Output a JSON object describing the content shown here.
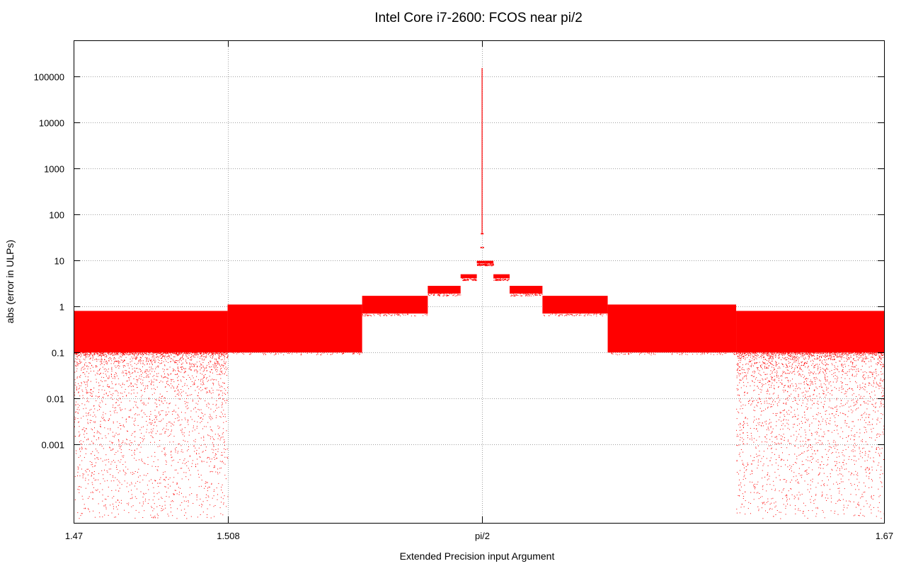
{
  "chart_data": {
    "type": "scatter",
    "title": "Intel Core i7-2600: FCOS near pi/2",
    "xlabel": "Extended Precision input Argument",
    "ylabel": "abs (error in ULPs)",
    "xlim": [
      1.47,
      1.67
    ],
    "x_tick_labels": [
      {
        "value": 1.47,
        "label": "1.47"
      },
      {
        "value": 1.508,
        "label": "1.508"
      },
      {
        "value": 1.5707963,
        "label": "pi/2"
      },
      {
        "value": 1.67,
        "label": "1.67"
      }
    ],
    "y_scale": "log",
    "ylim": [
      2e-05,
      600000
    ],
    "y_tick_labels": [
      {
        "value": 0.001,
        "label": "0.001"
      },
      {
        "value": 0.01,
        "label": "0.01"
      },
      {
        "value": 0.1,
        "label": "0.1"
      },
      {
        "value": 1,
        "label": "1"
      },
      {
        "value": 10,
        "label": "10"
      },
      {
        "value": 100,
        "label": "100"
      },
      {
        "value": 1000,
        "label": "1000"
      },
      {
        "value": 10000,
        "label": "10000"
      },
      {
        "value": 100000,
        "label": "100000"
      }
    ],
    "grid": true,
    "color": "#ff0000",
    "bands": [
      {
        "x0": 1.47,
        "x1": 1.508,
        "ymin": 0.1,
        "ymax": 0.8,
        "sparse_tail": true
      },
      {
        "x0": 1.508,
        "x1": 1.5412,
        "ymin": 0.1,
        "ymax": 1.1
      },
      {
        "x0": 1.5412,
        "x1": 1.5574,
        "ymin": 0.7,
        "ymax": 1.7
      },
      {
        "x0": 1.5574,
        "x1": 1.5655,
        "ymin": 1.9,
        "ymax": 2.8
      },
      {
        "x0": 1.5655,
        "x1": 1.5695,
        "ymin": 4.1,
        "ymax": 5.0
      },
      {
        "x0": 1.5695,
        "x1": 1.5716,
        "ymin": 8.6,
        "ymax": 9.8
      },
      {
        "x0": 1.5716,
        "x1": 1.5736,
        "ymin": 8.6,
        "ymax": 9.8
      },
      {
        "x0": 1.5736,
        "x1": 1.5776,
        "ymin": 4.1,
        "ymax": 5.0
      },
      {
        "x0": 1.5776,
        "x1": 1.5857,
        "ymin": 1.9,
        "ymax": 2.8
      },
      {
        "x0": 1.5857,
        "x1": 1.6018,
        "ymin": 0.7,
        "ymax": 1.7
      },
      {
        "x0": 1.6018,
        "x1": 1.6335,
        "ymin": 0.1,
        "ymax": 1.1
      },
      {
        "x0": 1.6335,
        "x1": 1.67,
        "ymin": 0.1,
        "ymax": 0.8,
        "sparse_tail": true
      }
    ],
    "small_segments": [
      {
        "x0": 1.5704,
        "x1": 1.5707,
        "y": 19
      },
      {
        "x0": 1.5709,
        "x1": 1.5712,
        "y": 19
      },
      {
        "x0": 1.5705,
        "x1": 1.5707,
        "y": 38
      },
      {
        "x0": 1.5708,
        "x1": 1.571,
        "y": 38
      }
    ],
    "center_spike": {
      "x": 1.5707963,
      "ymin": 40,
      "ymax": 150000
    }
  }
}
